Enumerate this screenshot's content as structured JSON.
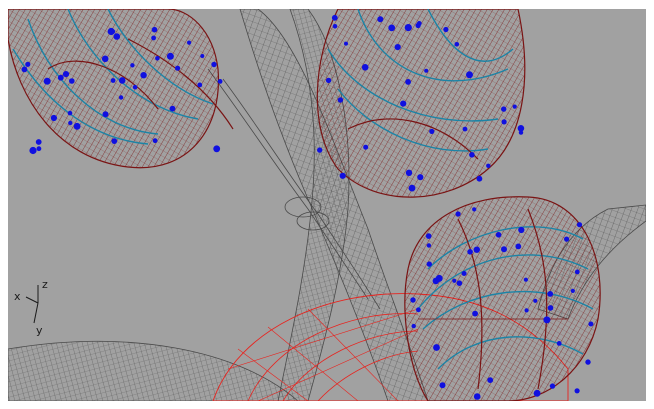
{
  "viewport": {
    "background": "#a1a1a1",
    "colors": {
      "wire_gray": "#4a4a4a",
      "wire_red": "#e8231e",
      "wire_darkred": "#7a1414",
      "curve_teal": "#1c84a6",
      "control_point_blue": "#1010e0"
    }
  },
  "axis_widget": {
    "x_label": "x",
    "y_label": "y",
    "z_label": "z"
  }
}
